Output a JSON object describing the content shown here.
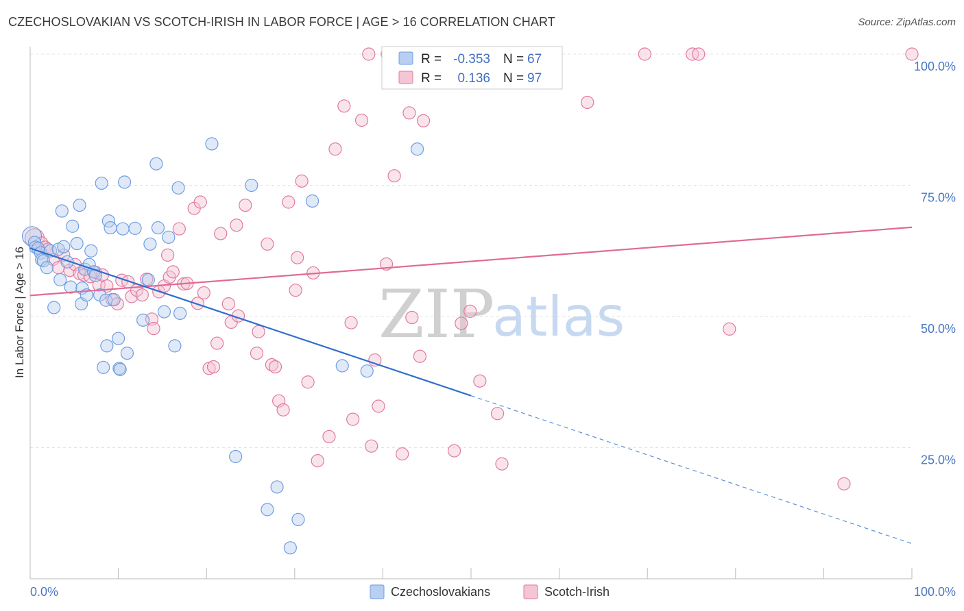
{
  "header": {
    "title": "CZECHOSLOVAKIAN VS SCOTCH-IRISH IN LABOR FORCE | AGE > 16 CORRELATION CHART",
    "source": "Source: ZipAtlas.com"
  },
  "watermark": {
    "zip": "ZIP",
    "atlas": "atlas"
  },
  "legend": {
    "r_label": "R =",
    "n_label": "N =",
    "rows": [
      {
        "r": "-0.353",
        "n": "67"
      },
      {
        "r": "0.136",
        "n": "97"
      }
    ]
  },
  "chart_data": {
    "type": "scatter",
    "xlabel": "",
    "ylabel": "In Labor Force | Age > 16",
    "xlim": [
      0,
      100
    ],
    "ylim": [
      0,
      100
    ],
    "x_tick_labels": [
      "0.0%",
      "100.0%"
    ],
    "y_tick_labels": [
      "25.0%",
      "50.0%",
      "75.0%",
      "100.0%"
    ],
    "y_ticks": [
      25,
      50,
      75,
      100
    ],
    "grid": true,
    "legend_position": "top-center",
    "series": [
      {
        "name": "Czechoslovakians",
        "color": "#6f9de0",
        "fill": "#b7cff0",
        "trend": {
          "x0": 0,
          "y0": 63.0,
          "x1": 50,
          "y1": 34.9,
          "dash_x1": 100,
          "dash_y1": 6.7
        },
        "points": [
          [
            0.2,
            65.3
          ],
          [
            0.5,
            64.1
          ],
          [
            0.6,
            63.2
          ],
          [
            0.9,
            63.0
          ],
          [
            1.2,
            62.1
          ],
          [
            1.3,
            60.8
          ],
          [
            1.5,
            60.6
          ],
          [
            1.9,
            59.3
          ],
          [
            2.3,
            62.5
          ],
          [
            2.7,
            51.7
          ],
          [
            3.2,
            62.8
          ],
          [
            3.4,
            57.0
          ],
          [
            3.6,
            70.1
          ],
          [
            3.8,
            63.3
          ],
          [
            4.2,
            60.4
          ],
          [
            4.6,
            55.6
          ],
          [
            4.8,
            67.2
          ],
          [
            5.3,
            63.9
          ],
          [
            5.6,
            71.2
          ],
          [
            5.8,
            52.4
          ],
          [
            5.9,
            55.4
          ],
          [
            6.2,
            59.0
          ],
          [
            6.4,
            54.1
          ],
          [
            6.7,
            59.9
          ],
          [
            6.9,
            62.5
          ],
          [
            7.2,
            58.5
          ],
          [
            7.4,
            57.8
          ],
          [
            7.9,
            54.1
          ],
          [
            8.1,
            75.4
          ],
          [
            8.3,
            40.3
          ],
          [
            8.6,
            53.1
          ],
          [
            8.7,
            44.4
          ],
          [
            8.9,
            68.2
          ],
          [
            9.1,
            66.9
          ],
          [
            9.5,
            53.2
          ],
          [
            10.0,
            45.8
          ],
          [
            10.1,
            40.1
          ],
          [
            10.2,
            39.9
          ],
          [
            10.5,
            66.7
          ],
          [
            10.7,
            75.6
          ],
          [
            11.0,
            43.0
          ],
          [
            11.9,
            66.8
          ],
          [
            12.8,
            49.3
          ],
          [
            13.4,
            57.0
          ],
          [
            13.6,
            63.8
          ],
          [
            14.3,
            79.1
          ],
          [
            14.5,
            66.9
          ],
          [
            15.2,
            50.9
          ],
          [
            15.7,
            65.1
          ],
          [
            16.4,
            44.4
          ],
          [
            16.8,
            74.5
          ],
          [
            17.0,
            50.6
          ],
          [
            20.6,
            82.9
          ],
          [
            23.3,
            23.3
          ],
          [
            25.1,
            75.0
          ],
          [
            26.9,
            13.2
          ],
          [
            28.0,
            17.5
          ],
          [
            29.5,
            5.9
          ],
          [
            30.4,
            11.3
          ],
          [
            32.0,
            72.0
          ],
          [
            35.4,
            40.6
          ],
          [
            38.2,
            39.6
          ],
          [
            43.9,
            81.9
          ]
        ]
      },
      {
        "name": "Scotch-Irish",
        "color": "#e07aa0",
        "fill": "#f5c4d5",
        "trend": {
          "x0": 0,
          "y0": 54.0,
          "x1": 100,
          "y1": 67.0
        },
        "points": [
          [
            0.5,
            64.9
          ],
          [
            1.3,
            64.0
          ],
          [
            1.7,
            63.2
          ],
          [
            2.0,
            62.8
          ],
          [
            2.6,
            60.9
          ],
          [
            3.2,
            59.3
          ],
          [
            3.8,
            61.7
          ],
          [
            4.5,
            58.8
          ],
          [
            5.1,
            59.9
          ],
          [
            5.6,
            58.2
          ],
          [
            6.1,
            57.9
          ],
          [
            6.8,
            57.6
          ],
          [
            7.4,
            58.4
          ],
          [
            7.8,
            56.0
          ],
          [
            8.2,
            57.9
          ],
          [
            8.7,
            55.8
          ],
          [
            9.3,
            53.2
          ],
          [
            9.9,
            52.4
          ],
          [
            10.4,
            56.9
          ],
          [
            11.1,
            56.6
          ],
          [
            11.5,
            53.8
          ],
          [
            12.1,
            55.0
          ],
          [
            12.7,
            54.1
          ],
          [
            13.2,
            57.1
          ],
          [
            13.8,
            49.5
          ],
          [
            14.0,
            47.7
          ],
          [
            14.6,
            54.7
          ],
          [
            15.2,
            55.8
          ],
          [
            15.6,
            61.7
          ],
          [
            15.8,
            57.5
          ],
          [
            16.2,
            58.5
          ],
          [
            16.9,
            66.7
          ],
          [
            17.4,
            56.2
          ],
          [
            17.8,
            56.3
          ],
          [
            18.6,
            70.6
          ],
          [
            19.0,
            52.5
          ],
          [
            19.3,
            71.8
          ],
          [
            19.7,
            54.5
          ],
          [
            20.3,
            40.1
          ],
          [
            20.8,
            40.4
          ],
          [
            21.2,
            44.9
          ],
          [
            21.6,
            65.8
          ],
          [
            22.5,
            52.4
          ],
          [
            22.8,
            48.9
          ],
          [
            23.4,
            67.4
          ],
          [
            23.6,
            50.1
          ],
          [
            24.4,
            71.2
          ],
          [
            25.7,
            43.0
          ],
          [
            25.9,
            47.1
          ],
          [
            26.9,
            63.8
          ],
          [
            27.4,
            40.8
          ],
          [
            27.8,
            40.4
          ],
          [
            28.2,
            33.9
          ],
          [
            28.7,
            32.2
          ],
          [
            29.3,
            71.8
          ],
          [
            30.1,
            55.0
          ],
          [
            30.3,
            61.2
          ],
          [
            30.8,
            75.8
          ],
          [
            31.5,
            37.5
          ],
          [
            32.1,
            58.3
          ],
          [
            32.6,
            22.5
          ],
          [
            33.9,
            27.1
          ],
          [
            34.6,
            81.9
          ],
          [
            35.6,
            90.1
          ],
          [
            36.4,
            48.8
          ],
          [
            36.6,
            30.4
          ],
          [
            37.6,
            87.4
          ],
          [
            38.4,
            100.0
          ],
          [
            38.7,
            25.3
          ],
          [
            39.1,
            41.7
          ],
          [
            39.5,
            32.9
          ],
          [
            40.4,
            60.0
          ],
          [
            40.5,
            100.0
          ],
          [
            41.3,
            76.8
          ],
          [
            42.2,
            23.8
          ],
          [
            43.0,
            88.8
          ],
          [
            43.3,
            49.8
          ],
          [
            44.2,
            42.4
          ],
          [
            44.6,
            87.3
          ],
          [
            48.1,
            24.4
          ],
          [
            48.9,
            48.7
          ],
          [
            49.9,
            51.0
          ],
          [
            51.0,
            37.7
          ],
          [
            53.0,
            31.5
          ],
          [
            53.5,
            21.9
          ],
          [
            63.2,
            90.8
          ],
          [
            69.7,
            100.0
          ],
          [
            75.1,
            100.0
          ],
          [
            75.8,
            100.0
          ],
          [
            79.3,
            47.6
          ],
          [
            92.3,
            18.1
          ],
          [
            100.0,
            100.0
          ]
        ]
      }
    ]
  }
}
